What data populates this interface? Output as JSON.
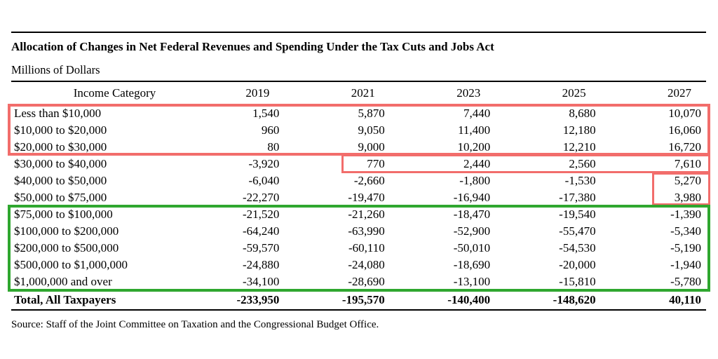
{
  "header": {
    "title": "Allocation of Changes in Net Federal Revenues and Spending Under the Tax Cuts and Jobs Act",
    "subtitle": "Millions of Dollars"
  },
  "table": {
    "columns": [
      "Income Category",
      "2019",
      "2021",
      "2023",
      "2025",
      "2027"
    ],
    "rows": [
      {
        "category": "Less than $10,000",
        "values": [
          "1,540",
          "5,870",
          "7,440",
          "8,680",
          "10,070"
        ]
      },
      {
        "category": "$10,000 to $20,000",
        "values": [
          "960",
          "9,050",
          "11,400",
          "12,180",
          "16,060"
        ]
      },
      {
        "category": "$20,000 to $30,000",
        "values": [
          "80",
          "9,000",
          "10,200",
          "12,210",
          "16,720"
        ]
      },
      {
        "category": "$30,000 to $40,000",
        "values": [
          "-3,920",
          "770",
          "2,440",
          "2,560",
          "7,610"
        ]
      },
      {
        "category": "$40,000 to $50,000",
        "values": [
          "-6,040",
          "-2,660",
          "-1,800",
          "-1,530",
          "5,270"
        ]
      },
      {
        "category": "$50,000 to $75,000",
        "values": [
          "-22,270",
          "-19,470",
          "-16,940",
          "-17,380",
          "3,980"
        ]
      },
      {
        "category": "$75,000 to $100,000",
        "values": [
          "-21,520",
          "-21,260",
          "-18,470",
          "-19,540",
          "-1,390"
        ]
      },
      {
        "category": "$100,000 to $200,000",
        "values": [
          "-64,240",
          "-63,990",
          "-52,900",
          "-55,470",
          "-5,340"
        ]
      },
      {
        "category": "$200,000 to $500,000",
        "values": [
          "-59,570",
          "-60,110",
          "-50,010",
          "-54,530",
          "-5,190"
        ]
      },
      {
        "category": "$500,000 to $1,000,000",
        "values": [
          "-24,880",
          "-24,080",
          "-18,690",
          "-20,000",
          "-1,940"
        ]
      },
      {
        "category": "$1,000,000 and over",
        "values": [
          "-34,100",
          "-28,690",
          "-13,100",
          "-15,810",
          "-5,780"
        ]
      }
    ],
    "total_row": {
      "label": "Total, All Taxpayers",
      "values": [
        "-233,950",
        "-195,570",
        "-140,400",
        "-148,620",
        "40,110"
      ]
    }
  },
  "annotations": {
    "red_hex": "#f26d6b",
    "green_hex": "#2fa72f"
  },
  "footer": {
    "source": "Source: Staff of the Joint Committee on Taxation and the Congressional Budget Office."
  }
}
